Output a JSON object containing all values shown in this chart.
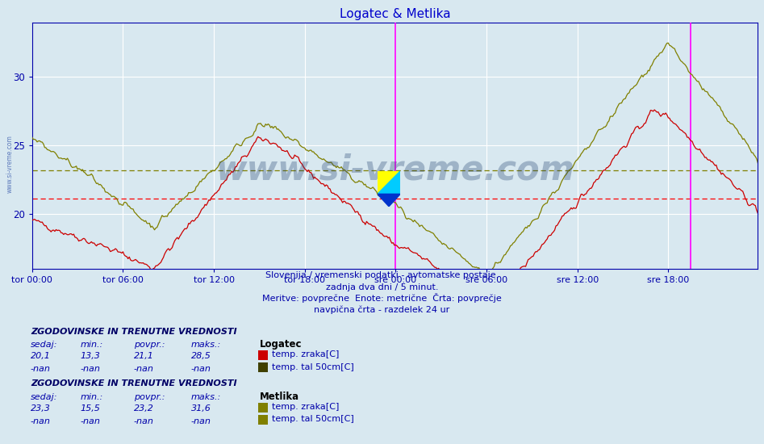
{
  "title": "Logatec & Metlika",
  "title_color": "#0000cc",
  "bg_color": "#d8e8f0",
  "plot_bg_color": "#d8e8f0",
  "grid_color": "#ffffff",
  "axis_color": "#0000aa",
  "xlabel_ticks": [
    "tor 00:00",
    "tor 06:00",
    "tor 12:00",
    "tor 18:00",
    "sre 00:00",
    "sre 06:00",
    "sre 12:00",
    "sre 18:00"
  ],
  "ylim": [
    16,
    34
  ],
  "yticks": [
    20,
    25,
    30
  ],
  "logatec_avg": 21.1,
  "metlika_avg": 23.2,
  "avg_line_color_red": "#ff0000",
  "avg_line_color_olive": "#808000",
  "vline_color": "#ff00ff",
  "subtitle1": "Slovenija / vremenski podatki - avtomatske postaje.",
  "subtitle2": "zadnja dva dni / 5 minut.",
  "subtitle3": "Meritve: povprečne  Enote: metrične  Črta: povprečje",
  "subtitle4": "navpična črta - razdelek 24 ur",
  "subtitle_color": "#0000aa",
  "watermark": "www.si-vreme.com",
  "watermark_color": "#1a3a6a",
  "section1_title": "ZGODOVINSKE IN TRENUTNE VREDNOSTI",
  "section1_station": "Logatec",
  "s1_sedaj": "20,1",
  "s1_min": "13,3",
  "s1_povpr": "21,1",
  "s1_maks": "28,5",
  "s1_line1": "temp. zraka[C]",
  "s1_line1_color": "#cc0000",
  "s1_line2": "temp. tal 50cm[C]",
  "s1_line2_color": "#404000",
  "section2_title": "ZGODOVINSKE IN TRENUTNE VREDNOSTI",
  "section2_station": "Metlika",
  "s2_sedaj": "23,3",
  "s2_min": "15,5",
  "s2_povpr": "23,2",
  "s2_maks": "31,6",
  "s2_line1": "temp. zraka[C]",
  "s2_line1_color": "#808000",
  "s2_line2": "temp. tal 50cm[C]",
  "s2_line2_color": "#808000",
  "text_color": "#0000aa",
  "label_color": "#000080"
}
